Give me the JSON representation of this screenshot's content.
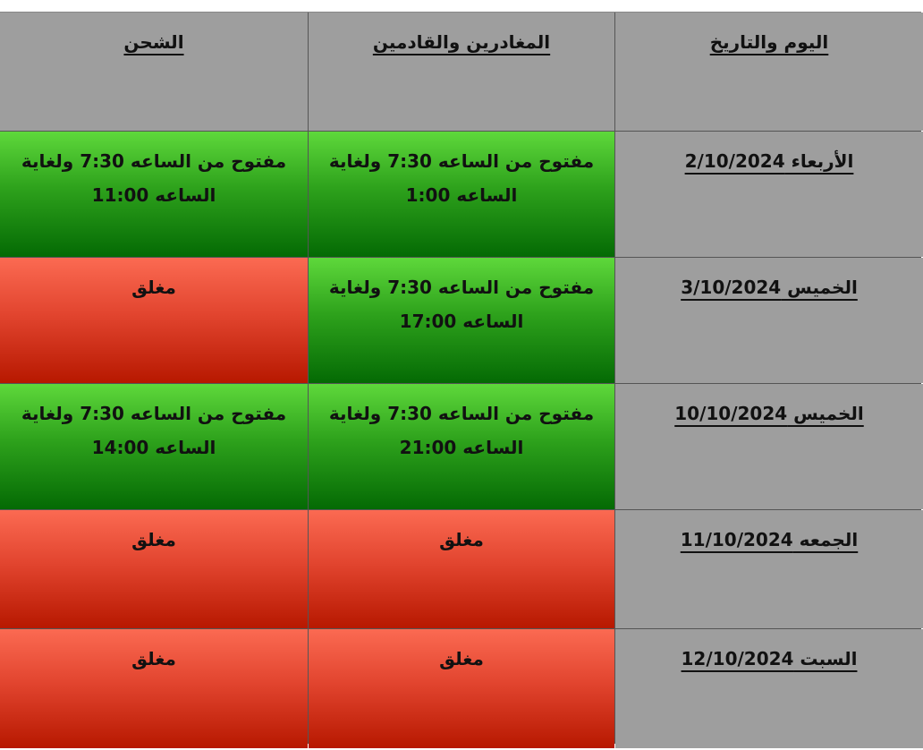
{
  "headers": {
    "shipping": "الشحن",
    "travelers": "المغادرين والقادمين",
    "date": "اليوم والتاريخ"
  },
  "rows": [
    {
      "date": "الأربعاء 2/10/2024",
      "travelers": {
        "status": "open",
        "line1": "مفتوح من الساعه 7:30 ولغاية",
        "line2": "الساعه 1:00"
      },
      "shipping": {
        "status": "open",
        "line1": "مفتوح من الساعه 7:30 ولغاية",
        "line2": "الساعه 11:00"
      }
    },
    {
      "date": "الخميس 3/10/2024",
      "travelers": {
        "status": "open",
        "line1": "مفتوح من الساعه 7:30  ولغاية",
        "line2": "الساعه 17:00"
      },
      "shipping": {
        "status": "closed",
        "line1": "مغلق",
        "line2": ""
      }
    },
    {
      "date": "الخميس 10/10/2024",
      "travelers": {
        "status": "open",
        "line1": "مفتوح من الساعه 7:30 ولغاية",
        "line2": "الساعه 21:00"
      },
      "shipping": {
        "status": "open",
        "line1": "مفتوح من الساعه 7:30 ولغاية",
        "line2": "الساعه 14:00"
      }
    },
    {
      "date": "الجمعه 11/10/2024",
      "travelers": {
        "status": "closed",
        "line1": "مغلق",
        "line2": ""
      },
      "shipping": {
        "status": "closed",
        "line1": "مغلق",
        "line2": ""
      }
    },
    {
      "date": "السبت 12/10/2024",
      "travelers": {
        "status": "closed",
        "line1": "مغلق",
        "line2": ""
      },
      "shipping": {
        "status": "closed",
        "line1": "مغلق",
        "line2": ""
      }
    }
  ],
  "colors": {
    "open": "#2ea21c",
    "closed": "#e2452f",
    "header": "#9e9e9e"
  }
}
